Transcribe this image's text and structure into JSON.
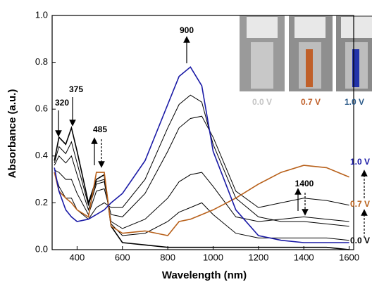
{
  "chart_data": {
    "type": "line",
    "xlabel": "Wavelength (nm)",
    "ylabel": "Absorbance (a.u.)",
    "x": [
      300,
      320,
      350,
      375,
      400,
      450,
      485,
      520,
      550,
      600,
      700,
      800,
      850,
      900,
      950,
      1000,
      1100,
      1200,
      1300,
      1400,
      1500,
      1600
    ],
    "series": [
      {
        "name": "0.0 V",
        "color": "#000000",
        "values": [
          0.38,
          0.48,
          0.45,
          0.52,
          0.42,
          0.2,
          0.3,
          0.32,
          0.1,
          0.03,
          0.02,
          0.01,
          0.01,
          0.01,
          0.01,
          0.01,
          0.01,
          0.01,
          0.01,
          0.01,
          0.01,
          0.0
        ]
      },
      {
        "color": "#000000",
        "values": [
          0.37,
          0.44,
          0.41,
          0.46,
          0.37,
          0.19,
          0.29,
          0.3,
          0.11,
          0.06,
          0.07,
          0.12,
          0.16,
          0.18,
          0.2,
          0.15,
          0.07,
          0.05,
          0.05,
          0.05,
          0.05,
          0.04
        ]
      },
      {
        "color": "#000000",
        "values": [
          0.36,
          0.4,
          0.37,
          0.4,
          0.32,
          0.17,
          0.28,
          0.29,
          0.12,
          0.09,
          0.13,
          0.22,
          0.29,
          0.32,
          0.33,
          0.27,
          0.14,
          0.12,
          0.13,
          0.14,
          0.13,
          0.12
        ]
      },
      {
        "color": "#000000",
        "values": [
          0.34,
          0.33,
          0.3,
          0.3,
          0.24,
          0.15,
          0.25,
          0.26,
          0.15,
          0.14,
          0.24,
          0.42,
          0.52,
          0.56,
          0.57,
          0.48,
          0.25,
          0.18,
          0.2,
          0.22,
          0.21,
          0.19
        ]
      },
      {
        "color": "#000000",
        "values": [
          0.33,
          0.27,
          0.22,
          0.22,
          0.17,
          0.13,
          0.18,
          0.2,
          0.18,
          0.18,
          0.3,
          0.52,
          0.62,
          0.66,
          0.63,
          0.45,
          0.22,
          0.14,
          0.12,
          0.12,
          0.11,
          0.1
        ]
      },
      {
        "name": "0.7 V",
        "color": "#b8601a",
        "values": [
          0.33,
          0.25,
          0.22,
          0.2,
          0.17,
          0.14,
          0.33,
          0.33,
          0.1,
          0.07,
          0.08,
          0.06,
          0.12,
          0.13,
          0.15,
          0.17,
          0.22,
          0.28,
          0.33,
          0.36,
          0.35,
          0.31
        ]
      },
      {
        "name": "1.0 V",
        "color": "#1a1aa6",
        "values": [
          0.35,
          0.25,
          0.17,
          0.14,
          0.12,
          0.13,
          0.15,
          0.17,
          0.2,
          0.24,
          0.38,
          0.62,
          0.74,
          0.78,
          0.7,
          0.42,
          0.17,
          0.06,
          0.04,
          0.03,
          0.03,
          0.03
        ]
      }
    ],
    "annotations": [
      "900",
      "375",
      "320",
      "485",
      "1400"
    ],
    "xlim": [
      290,
      1620
    ],
    "ylim": [
      0,
      1.0
    ],
    "xticks": [
      400,
      600,
      800,
      1000,
      1200,
      1400,
      1600
    ],
    "yticks": [
      {
        "value": 0,
        "label": "0.0"
      },
      0.2,
      0.4,
      0.6,
      0.8,
      {
        "value": 1.0,
        "label": "1.0"
      }
    ]
  }
}
